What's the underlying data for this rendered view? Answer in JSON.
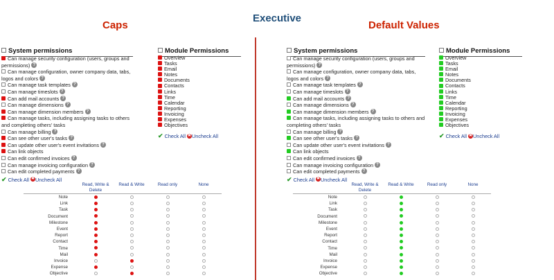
{
  "page": {
    "title": "Executive"
  },
  "colors": {
    "red": "#dd1111",
    "green": "#22cc22",
    "title_red": "#cc2200",
    "title_blue": "#1f4e79"
  },
  "labels": {
    "system_permissions": "System permissions",
    "module_permissions": "Module Permissions",
    "check_all": "Check All",
    "uncheck_all": "Uncheck All"
  },
  "permission_labels": [
    "Can manage security configuration (users, groups and permissions)",
    "Can manage configuration, owner company data, tabs, logos and colors",
    "Can manage task templates",
    "Can manage timeslots",
    "Can add mail accounts",
    "Can manage dimensions",
    "Can manage dimension members",
    "Can manage tasks, including assigning tasks to others and completing others' tasks",
    "Can manage billing",
    "Can see other user's tasks",
    "Can update other user's event invitations",
    "Can link objects",
    "Can edit confirmed invoices",
    "Can manage invoicing configuration",
    "Can edit completed payments"
  ],
  "module_labels": [
    "Overview",
    "Tasks",
    "Email",
    "Notes",
    "Documents",
    "Contacts",
    "Links",
    "Time",
    "Calendar",
    "Reporting",
    "Invoicing",
    "Expenses",
    "Objectives"
  ],
  "object_columns": [
    "Read, Write & Delete",
    "Read & Write",
    "Read only",
    "None"
  ],
  "object_types": [
    "Note",
    "Link",
    "Task",
    "Document",
    "Milestone",
    "Event",
    "Report",
    "Contact",
    "Time",
    "Mail",
    "Invoice",
    "Expense",
    "Objective"
  ],
  "panels": [
    {
      "title": "Caps",
      "mark": "red",
      "system_checked": [
        true,
        false,
        false,
        false,
        true,
        false,
        true,
        true,
        false,
        true,
        true,
        true,
        false,
        false,
        false
      ],
      "module_checked": [
        true,
        true,
        true,
        true,
        true,
        true,
        true,
        true,
        true,
        true,
        true,
        true,
        true
      ],
      "object_levels": [
        0,
        0,
        0,
        0,
        0,
        0,
        0,
        0,
        0,
        0,
        1,
        0,
        1
      ]
    },
    {
      "title": "Default Values",
      "mark": "green",
      "system_checked": [
        false,
        false,
        false,
        false,
        true,
        false,
        true,
        true,
        false,
        true,
        false,
        true,
        false,
        false,
        false
      ],
      "module_checked": [
        true,
        true,
        true,
        true,
        true,
        true,
        true,
        true,
        true,
        true,
        true,
        true,
        true
      ],
      "object_levels": [
        1,
        1,
        1,
        1,
        1,
        1,
        1,
        1,
        1,
        1,
        1,
        1,
        1
      ]
    }
  ]
}
